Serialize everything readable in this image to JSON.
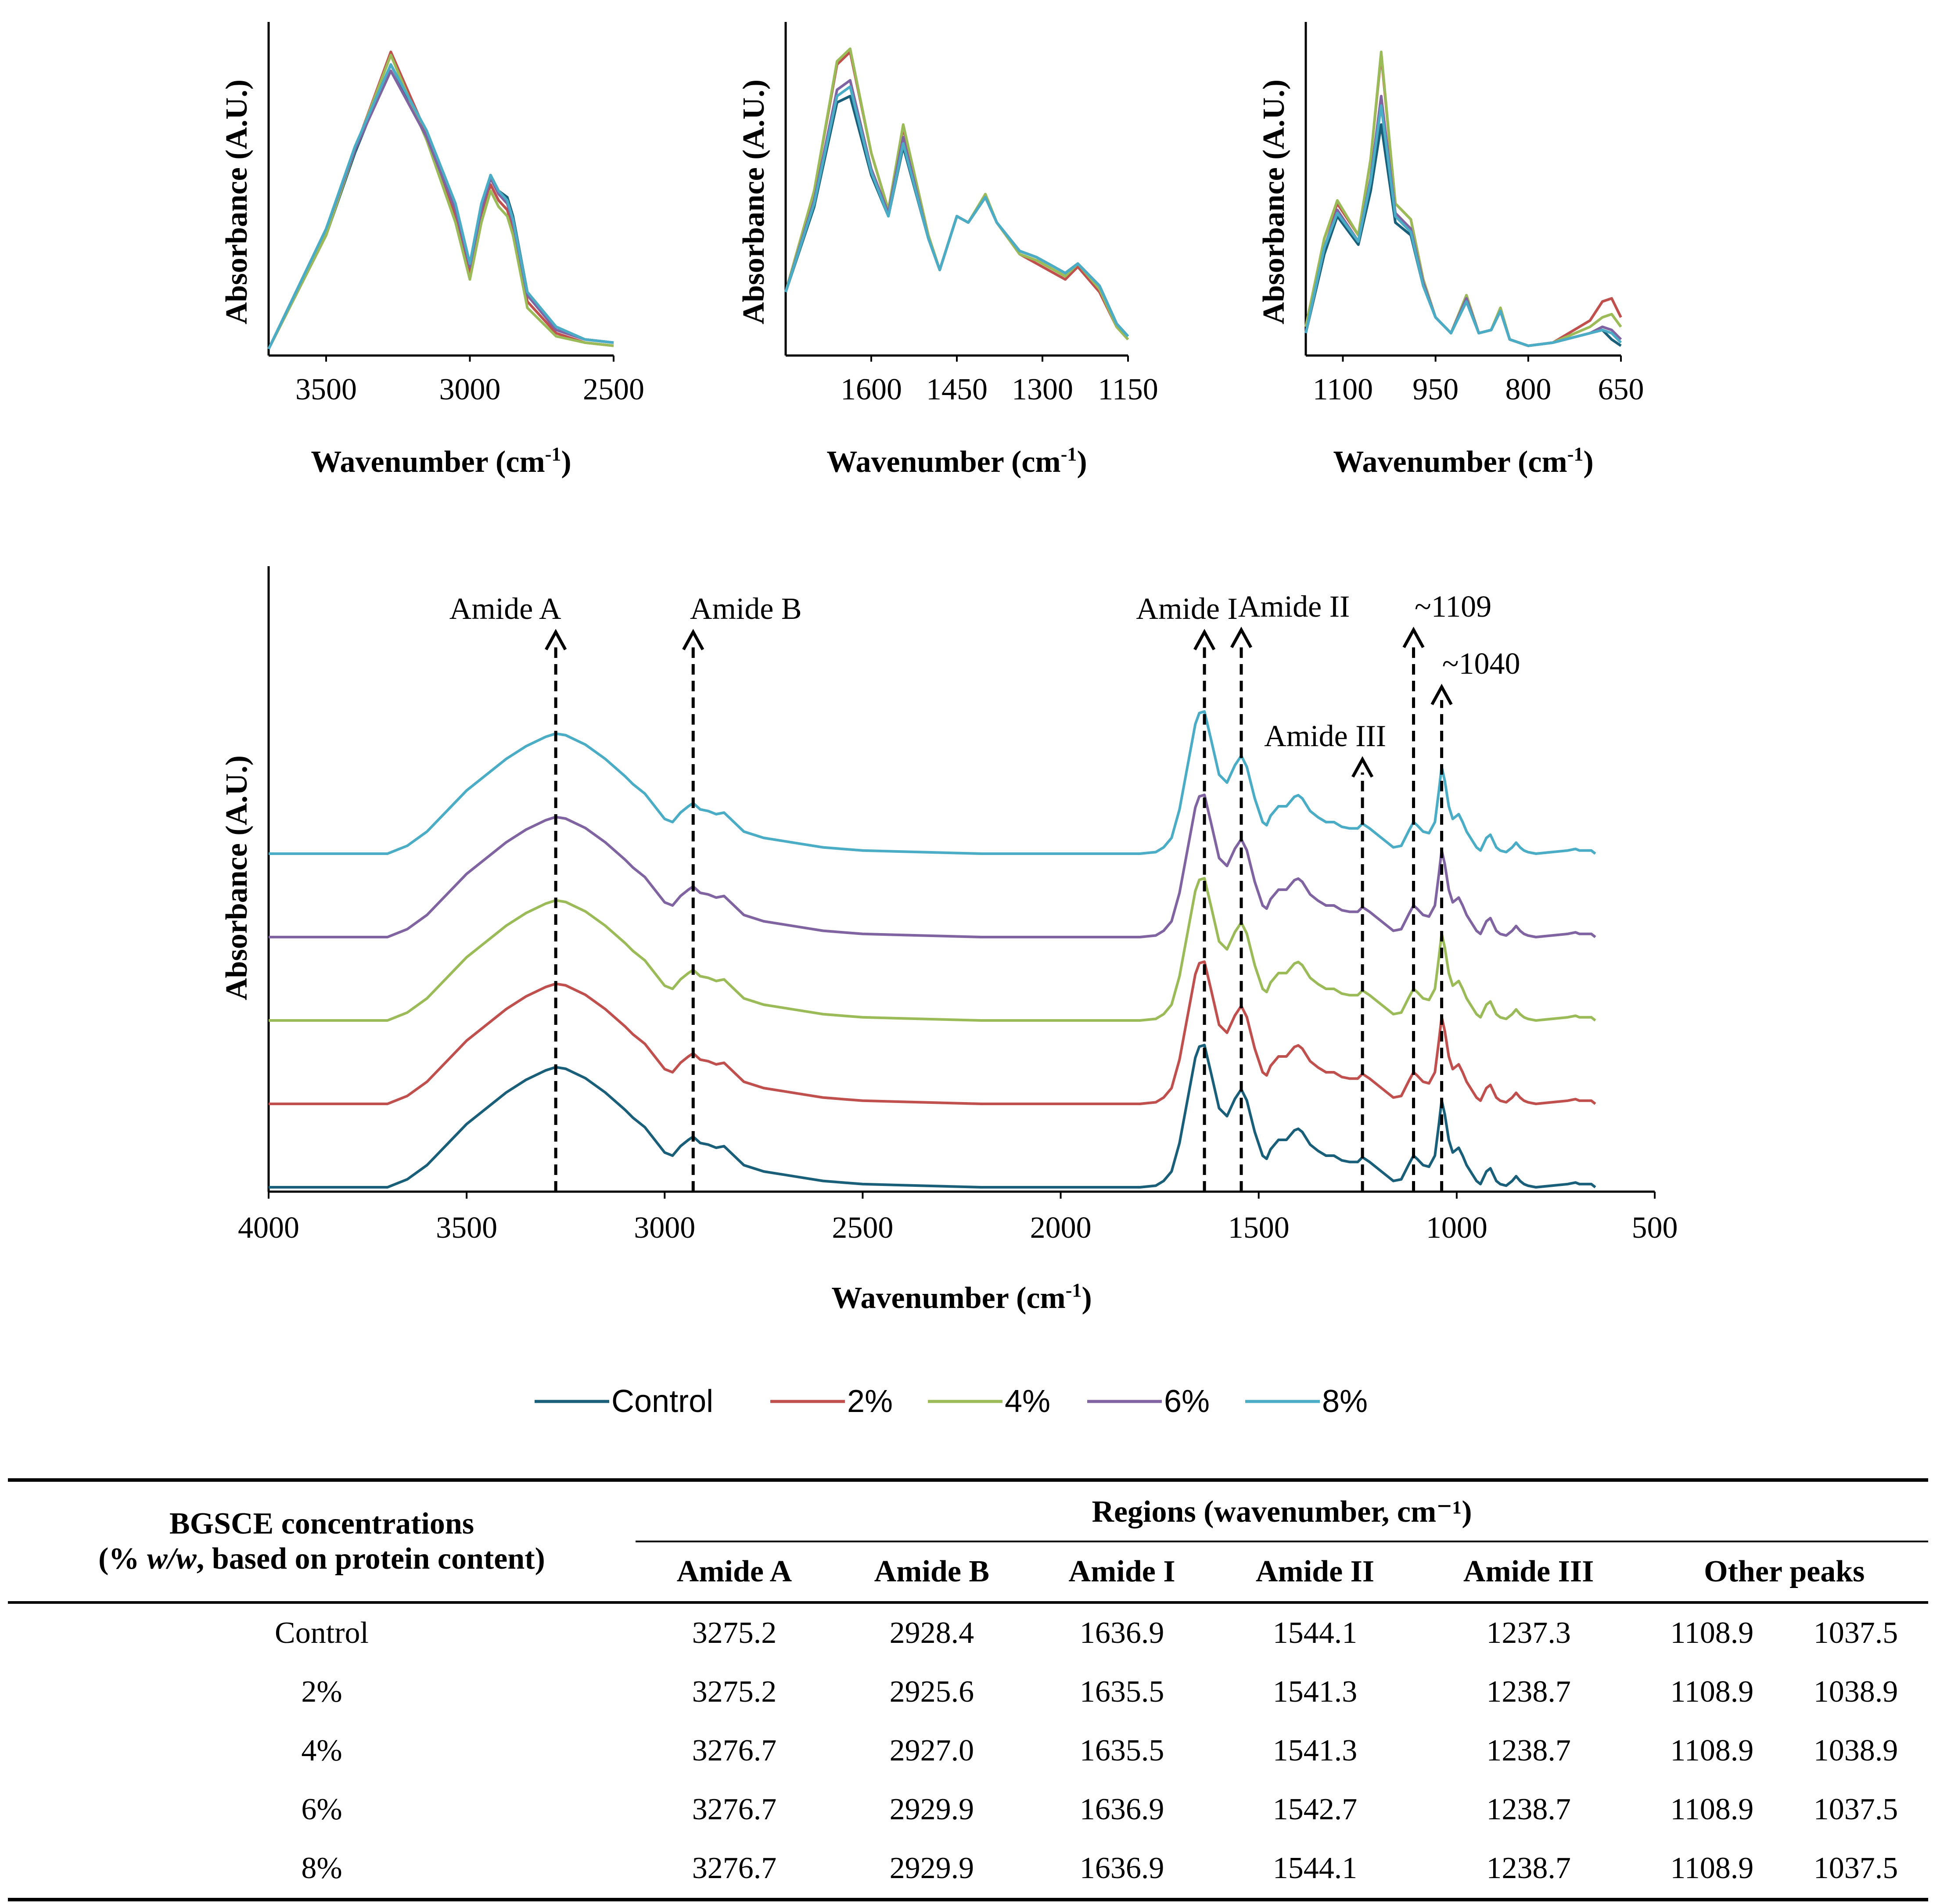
{
  "chart_data": [
    {
      "type": "line",
      "panel": "top-left inset",
      "xlabel": "Wavenumber (cm-1)",
      "ylabel": "Absorbance (A.U.)",
      "xlim": [
        3700,
        2500
      ],
      "xticks": [
        "3500",
        "3000",
        "2500"
      ],
      "series": [
        {
          "name": "Control",
          "x": [
            3700,
            3500,
            3400,
            3275,
            3150,
            3050,
            3000,
            2960,
            2928,
            2900,
            2870,
            2850,
            2800,
            2700,
            2600,
            2500
          ],
          "y": [
            0.0,
            0.36,
            0.62,
            0.9,
            0.68,
            0.44,
            0.25,
            0.44,
            0.55,
            0.5,
            0.48,
            0.42,
            0.18,
            0.07,
            0.03,
            0.02
          ]
        },
        {
          "name": "2%",
          "x": [
            3700,
            3500,
            3400,
            3275,
            3150,
            3050,
            3000,
            2960,
            2928,
            2900,
            2870,
            2850,
            2800,
            2700,
            2600,
            2500
          ],
          "y": [
            0.0,
            0.36,
            0.63,
            0.94,
            0.68,
            0.42,
            0.24,
            0.42,
            0.52,
            0.47,
            0.44,
            0.38,
            0.15,
            0.05,
            0.02,
            0.01
          ]
        },
        {
          "name": "4%",
          "x": [
            3700,
            3500,
            3400,
            3275,
            3150,
            3050,
            3000,
            2960,
            2928,
            2900,
            2870,
            2850,
            2800,
            2700,
            2600,
            2500
          ],
          "y": [
            0.0,
            0.36,
            0.63,
            0.93,
            0.66,
            0.4,
            0.22,
            0.4,
            0.5,
            0.45,
            0.42,
            0.36,
            0.13,
            0.04,
            0.02,
            0.01
          ]
        },
        {
          "name": "6%",
          "x": [
            3700,
            3500,
            3400,
            3275,
            3150,
            3050,
            3000,
            2960,
            2928,
            2900,
            2870,
            2850,
            2800,
            2700,
            2600,
            2500
          ],
          "y": [
            0.0,
            0.38,
            0.63,
            0.88,
            0.67,
            0.44,
            0.26,
            0.44,
            0.54,
            0.49,
            0.46,
            0.4,
            0.17,
            0.06,
            0.03,
            0.02
          ]
        },
        {
          "name": "8%",
          "x": [
            3700,
            3500,
            3400,
            3275,
            3150,
            3050,
            3000,
            2960,
            2928,
            2900,
            2870,
            2850,
            2800,
            2700,
            2600,
            2500
          ],
          "y": [
            0.0,
            0.38,
            0.64,
            0.9,
            0.69,
            0.46,
            0.27,
            0.46,
            0.55,
            0.5,
            0.47,
            0.41,
            0.18,
            0.07,
            0.03,
            0.02
          ]
        }
      ]
    },
    {
      "type": "line",
      "panel": "top-middle inset",
      "xlabel": "Wavenumber (cm-1)",
      "ylabel": "Absorbance (A.U.)",
      "xlim": [
        1750,
        1150
      ],
      "xticks": [
        "1600",
        "1450",
        "1300",
        "1150"
      ],
      "series": [
        {
          "name": "Control",
          "x": [
            1750,
            1700,
            1660,
            1637,
            1600,
            1570,
            1544,
            1500,
            1480,
            1450,
            1430,
            1400,
            1380,
            1340,
            1310,
            1280,
            1260,
            1238,
            1200,
            1170,
            1150
          ],
          "y": [
            0.18,
            0.45,
            0.78,
            0.8,
            0.55,
            0.42,
            0.64,
            0.35,
            0.25,
            0.42,
            0.4,
            0.48,
            0.4,
            0.31,
            0.29,
            0.26,
            0.24,
            0.27,
            0.2,
            0.08,
            0.04
          ]
        },
        {
          "name": "2%",
          "x": [
            1750,
            1700,
            1660,
            1637,
            1600,
            1570,
            1544,
            1500,
            1480,
            1450,
            1430,
            1400,
            1380,
            1340,
            1310,
            1280,
            1260,
            1238,
            1200,
            1170,
            1150
          ],
          "y": [
            0.18,
            0.5,
            0.9,
            0.94,
            0.62,
            0.44,
            0.7,
            0.36,
            0.25,
            0.42,
            0.4,
            0.48,
            0.4,
            0.3,
            0.27,
            0.24,
            0.22,
            0.26,
            0.18,
            0.07,
            0.03
          ]
        },
        {
          "name": "4%",
          "x": [
            1750,
            1700,
            1660,
            1637,
            1600,
            1570,
            1544,
            1500,
            1480,
            1450,
            1430,
            1400,
            1380,
            1340,
            1310,
            1280,
            1260,
            1238,
            1200,
            1170,
            1150
          ],
          "y": [
            0.18,
            0.5,
            0.91,
            0.95,
            0.62,
            0.44,
            0.71,
            0.36,
            0.25,
            0.42,
            0.4,
            0.49,
            0.4,
            0.3,
            0.28,
            0.25,
            0.23,
            0.27,
            0.19,
            0.07,
            0.03
          ]
        },
        {
          "name": "6%",
          "x": [
            1750,
            1700,
            1660,
            1637,
            1600,
            1570,
            1544,
            1500,
            1480,
            1450,
            1430,
            1400,
            1380,
            1340,
            1310,
            1280,
            1260,
            1238,
            1200,
            1170,
            1150
          ],
          "y": [
            0.18,
            0.47,
            0.82,
            0.85,
            0.57,
            0.43,
            0.67,
            0.35,
            0.25,
            0.42,
            0.4,
            0.48,
            0.4,
            0.31,
            0.29,
            0.26,
            0.24,
            0.27,
            0.2,
            0.08,
            0.04
          ]
        },
        {
          "name": "8%",
          "x": [
            1750,
            1700,
            1660,
            1637,
            1600,
            1570,
            1544,
            1500,
            1480,
            1450,
            1430,
            1400,
            1380,
            1340,
            1310,
            1280,
            1260,
            1238,
            1200,
            1170,
            1150
          ],
          "y": [
            0.18,
            0.46,
            0.8,
            0.83,
            0.56,
            0.42,
            0.65,
            0.35,
            0.25,
            0.42,
            0.4,
            0.48,
            0.4,
            0.31,
            0.29,
            0.26,
            0.24,
            0.27,
            0.2,
            0.08,
            0.04
          ]
        }
      ]
    },
    {
      "type": "line",
      "panel": "top-right inset",
      "xlabel": "Wavenumber (cm-1)",
      "ylabel": "Absorbance (A.U.)",
      "xlim": [
        1160,
        650
      ],
      "xticks": [
        "1100",
        "950",
        "800",
        "650"
      ],
      "series": [
        {
          "name": "Control",
          "x": [
            1160,
            1130,
            1109,
            1075,
            1055,
            1038,
            1015,
            990,
            970,
            950,
            925,
            900,
            880,
            860,
            845,
            830,
            800,
            760,
            700,
            680,
            665,
            650
          ],
          "y": [
            0.05,
            0.3,
            0.42,
            0.33,
            0.5,
            0.71,
            0.4,
            0.36,
            0.2,
            0.1,
            0.05,
            0.15,
            0.05,
            0.06,
            0.12,
            0.03,
            0.01,
            0.02,
            0.05,
            0.06,
            0.03,
            0.01
          ]
        },
        {
          "name": "2%",
          "x": [
            1160,
            1130,
            1109,
            1075,
            1055,
            1038,
            1015,
            990,
            970,
            950,
            925,
            900,
            880,
            860,
            845,
            830,
            800,
            760,
            700,
            680,
            665,
            650
          ],
          "y": [
            0.07,
            0.35,
            0.46,
            0.36,
            0.6,
            0.93,
            0.46,
            0.41,
            0.22,
            0.1,
            0.05,
            0.17,
            0.05,
            0.06,
            0.13,
            0.03,
            0.01,
            0.02,
            0.09,
            0.15,
            0.16,
            0.1
          ]
        },
        {
          "name": "4%",
          "x": [
            1160,
            1130,
            1109,
            1075,
            1055,
            1038,
            1015,
            990,
            970,
            950,
            925,
            900,
            880,
            860,
            845,
            830,
            800,
            760,
            700,
            680,
            665,
            650
          ],
          "y": [
            0.07,
            0.35,
            0.47,
            0.36,
            0.6,
            0.94,
            0.46,
            0.41,
            0.22,
            0.1,
            0.05,
            0.17,
            0.05,
            0.06,
            0.13,
            0.03,
            0.01,
            0.02,
            0.07,
            0.1,
            0.11,
            0.07
          ]
        },
        {
          "name": "6%",
          "x": [
            1160,
            1130,
            1109,
            1075,
            1055,
            1038,
            1015,
            990,
            970,
            950,
            925,
            900,
            880,
            860,
            845,
            830,
            800,
            760,
            700,
            680,
            665,
            650
          ],
          "y": [
            0.05,
            0.32,
            0.44,
            0.34,
            0.54,
            0.8,
            0.43,
            0.38,
            0.21,
            0.1,
            0.05,
            0.16,
            0.05,
            0.06,
            0.12,
            0.03,
            0.01,
            0.02,
            0.05,
            0.07,
            0.06,
            0.03
          ]
        },
        {
          "name": "8%",
          "x": [
            1160,
            1130,
            1109,
            1075,
            1055,
            1038,
            1015,
            990,
            970,
            950,
            925,
            900,
            880,
            860,
            845,
            830,
            800,
            760,
            700,
            680,
            665,
            650
          ],
          "y": [
            0.05,
            0.32,
            0.43,
            0.34,
            0.53,
            0.77,
            0.42,
            0.37,
            0.2,
            0.1,
            0.05,
            0.15,
            0.05,
            0.06,
            0.12,
            0.03,
            0.01,
            0.02,
            0.05,
            0.06,
            0.05,
            0.02
          ]
        }
      ]
    },
    {
      "type": "line",
      "panel": "main stacked spectra",
      "xlabel": "Wavenumber (cm-1)",
      "ylabel": "Absorbance (A.U.)",
      "xlim": [
        4000,
        500
      ],
      "xticks": [
        "4000",
        "3500",
        "3000",
        "2500",
        "2000",
        "1500",
        "1000",
        "500"
      ],
      "stack_offsets": [
        0,
        1,
        2,
        3,
        4
      ],
      "shape": {
        "x": [
          4000,
          3700,
          3650,
          3600,
          3500,
          3400,
          3350,
          3300,
          3275,
          3250,
          3200,
          3150,
          3100,
          3080,
          3050,
          3000,
          2980,
          2960,
          2940,
          2928,
          2910,
          2890,
          2870,
          2850,
          2800,
          2750,
          2700,
          2650,
          2600,
          2550,
          2500,
          2200,
          1800,
          1760,
          1740,
          1720,
          1700,
          1680,
          1660,
          1650,
          1637,
          1620,
          1600,
          1580,
          1560,
          1544,
          1530,
          1510,
          1490,
          1480,
          1470,
          1450,
          1430,
          1410,
          1400,
          1390,
          1370,
          1350,
          1330,
          1310,
          1290,
          1270,
          1250,
          1238,
          1220,
          1200,
          1180,
          1160,
          1140,
          1120,
          1109,
          1100,
          1085,
          1070,
          1055,
          1045,
          1038,
          1030,
          1020,
          1010,
          995,
          985,
          975,
          960,
          950,
          940,
          925,
          915,
          900,
          890,
          875,
          860,
          850,
          840,
          830,
          820,
          800,
          760,
          720,
          700,
          690,
          675,
          660,
          650
        ],
        "y": [
          0.0,
          0.0,
          0.05,
          0.14,
          0.4,
          0.6,
          0.68,
          0.74,
          0.76,
          0.75,
          0.69,
          0.6,
          0.49,
          0.44,
          0.38,
          0.22,
          0.2,
          0.26,
          0.3,
          0.32,
          0.28,
          0.27,
          0.25,
          0.26,
          0.14,
          0.1,
          0.08,
          0.06,
          0.04,
          0.03,
          0.02,
          0.0,
          0.0,
          0.01,
          0.04,
          0.1,
          0.28,
          0.55,
          0.82,
          0.89,
          0.9,
          0.72,
          0.5,
          0.45,
          0.56,
          0.62,
          0.55,
          0.35,
          0.2,
          0.18,
          0.24,
          0.3,
          0.3,
          0.36,
          0.37,
          0.35,
          0.27,
          0.23,
          0.2,
          0.2,
          0.17,
          0.16,
          0.16,
          0.19,
          0.16,
          0.12,
          0.08,
          0.04,
          0.05,
          0.15,
          0.2,
          0.18,
          0.14,
          0.13,
          0.2,
          0.4,
          0.55,
          0.46,
          0.3,
          0.22,
          0.25,
          0.2,
          0.14,
          0.08,
          0.04,
          0.02,
          0.1,
          0.12,
          0.04,
          0.02,
          0.01,
          0.04,
          0.07,
          0.04,
          0.02,
          0.01,
          0.0,
          0.01,
          0.02,
          0.03,
          0.02,
          0.02,
          0.02,
          0.0
        ]
      },
      "series": [
        {
          "name": "Control",
          "color": "#1a5f7a",
          "offset": 0
        },
        {
          "name": "2%",
          "color": "#c0504d",
          "offset": 1
        },
        {
          "name": "4%",
          "color": "#9bbb59",
          "offset": 2
        },
        {
          "name": "6%",
          "color": "#8064a2",
          "offset": 3
        },
        {
          "name": "8%",
          "color": "#4bacc6",
          "offset": 4
        }
      ],
      "annotations": [
        {
          "label": "Amide A",
          "x": 3275
        },
        {
          "label": "Amide B",
          "x": 2928
        },
        {
          "label": "Amide I",
          "x": 1637
        },
        {
          "label": "Amide II",
          "x": 1544
        },
        {
          "label": "Amide III",
          "x": 1238
        },
        {
          "label": "~1109",
          "x": 1109
        },
        {
          "label": "~1040",
          "x": 1038
        }
      ]
    }
  ],
  "legend": [
    {
      "name": "Control",
      "color": "#1a5f7a"
    },
    {
      "name": "2%",
      "color": "#c0504d"
    },
    {
      "name": "4%",
      "color": "#9bbb59"
    },
    {
      "name": "6%",
      "color": "#8064a2"
    },
    {
      "name": "8%",
      "color": "#4bacc6"
    }
  ],
  "axis_labels": {
    "ylabel": "Absorbance (A.U.)",
    "xlabel_main": "Wavenumber (cm",
    "xlabel_sup": "-1",
    "xlabel_close": ")"
  },
  "table": {
    "header_col1_line1": "BGSCE concentrations",
    "header_col1_line2_pre": "(% ",
    "header_col1_line2_em": "w/w",
    "header_col1_line2_post": ", based on protein content)",
    "regions_header": "Regions (wavenumber, cm⁻¹)",
    "columns": [
      "Amide A",
      "Amide B",
      "Amide I",
      "Amide II",
      "Amide III",
      "Other peaks"
    ],
    "rows": [
      {
        "label": "Control",
        "values": [
          "3275.2",
          "2928.4",
          "1636.9",
          "1544.1",
          "1237.3",
          "1108.9",
          "1037.5"
        ]
      },
      {
        "label": "2%",
        "values": [
          "3275.2",
          "2925.6",
          "1635.5",
          "1541.3",
          "1238.7",
          "1108.9",
          "1038.9"
        ]
      },
      {
        "label": "4%",
        "values": [
          "3276.7",
          "2927.0",
          "1635.5",
          "1541.3",
          "1238.7",
          "1108.9",
          "1038.9"
        ]
      },
      {
        "label": "6%",
        "values": [
          "3276.7",
          "2929.9",
          "1636.9",
          "1542.7",
          "1238.7",
          "1108.9",
          "1037.5"
        ]
      },
      {
        "label": "8%",
        "values": [
          "3276.7",
          "2929.9",
          "1636.9",
          "1544.1",
          "1238.7",
          "1108.9",
          "1037.5"
        ]
      }
    ]
  }
}
